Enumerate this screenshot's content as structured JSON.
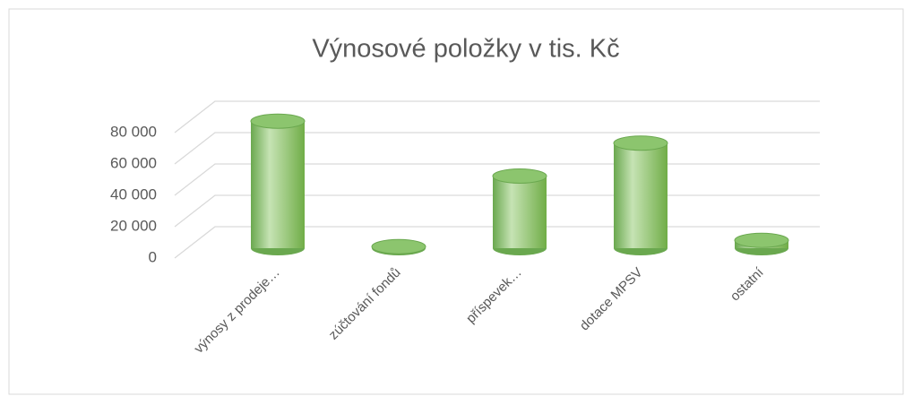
{
  "chart_data": {
    "type": "bar",
    "title": "Výnosové  položky  v tis. Kč",
    "categories": [
      "výnosy z prodeje…",
      "zúčtování fondů",
      "příspevek…",
      "dotace MPSV",
      "ostatní"
    ],
    "values": [
      81000,
      1000,
      46000,
      67000,
      5000
    ],
    "color": "#8cc56e",
    "ylim": [
      0,
      80000
    ],
    "yticks": [
      0,
      {
        "value": 20000,
        "label": "20 000"
      },
      {
        "value": 40000,
        "label": "40 000"
      },
      {
        "value": 60000,
        "label": "60 000"
      },
      {
        "value": 80000,
        "label": "80 000"
      }
    ],
    "grid": true
  }
}
